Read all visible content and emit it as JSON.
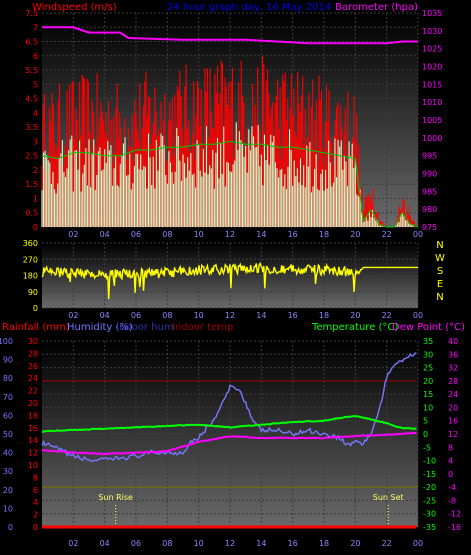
{
  "chart_data": [
    {
      "type": "area",
      "title": "24 hour graph day, 16 May 2014",
      "left_label": "Windspeed (m/s)",
      "right_label": "Barometer (hpa)",
      "left_ticks": [
        "0",
        "0.5",
        "1",
        "1.5",
        "2",
        "2.5",
        "3",
        "3.5",
        "4",
        "4.5",
        "5",
        "5.5",
        "6",
        "6.5",
        "7",
        "7.5"
      ],
      "left_range": [
        0,
        7.5
      ],
      "right_ticks": [
        "975",
        "980",
        "985",
        "990",
        "995",
        "1000",
        "1005",
        "1010",
        "1015",
        "1020",
        "1025",
        "1030",
        "1035"
      ],
      "right_range": [
        975,
        1035
      ],
      "x_ticks": [
        "02",
        "04",
        "06",
        "08",
        "10",
        "12",
        "14",
        "16",
        "18",
        "20",
        "22",
        "00"
      ],
      "x_range": [
        0,
        24
      ],
      "series": [
        {
          "name": "Barometer",
          "color": "#ff00ff",
          "x": [
            0,
            2,
            3,
            5,
            5.5,
            9,
            13,
            15,
            17,
            20,
            21,
            22,
            23,
            24
          ],
          "values": [
            1031,
            1031,
            1029.5,
            1029.5,
            1028,
            1027.5,
            1027.5,
            1027,
            1026.5,
            1026.5,
            1026.5,
            1026.5,
            1027,
            1027
          ]
        }
      ],
      "wind_gust_hourly": {
        "color": "#ff0000",
        "x": [
          0,
          1,
          2,
          3,
          4,
          5,
          6,
          7,
          8,
          9,
          10,
          11,
          12,
          13,
          14,
          15,
          16,
          17,
          18,
          19,
          20,
          20.5,
          21,
          21.5,
          22,
          22.5,
          23,
          23.5,
          24
        ],
        "values": [
          3.4,
          3.6,
          3.8,
          3.9,
          3.8,
          3.7,
          3.8,
          4.0,
          4.0,
          4.1,
          4.2,
          4.3,
          4.4,
          4.3,
          4.3,
          4.2,
          4.1,
          4.0,
          3.8,
          3.7,
          3.6,
          0.5,
          1.5,
          0.3,
          0,
          0,
          1.0,
          0.4,
          0
        ]
      },
      "wind_avg_hourly": {
        "color": "#ccffcc",
        "x": [
          0,
          1,
          2,
          3,
          4,
          5,
          6,
          7,
          8,
          9,
          10,
          11,
          12,
          13,
          14,
          15,
          16,
          17,
          18,
          19,
          20,
          20.5,
          21,
          21.5,
          22,
          22.5,
          23,
          23.5,
          24
        ],
        "values": [
          2.5,
          2.4,
          2.6,
          2.6,
          2.5,
          2.5,
          2.7,
          2.7,
          2.8,
          2.8,
          2.9,
          2.9,
          3.0,
          2.9,
          2.9,
          2.8,
          2.8,
          2.7,
          2.6,
          2.5,
          2.4,
          0.2,
          0.6,
          0.1,
          0,
          0,
          0.5,
          0.1,
          0
        ]
      }
    },
    {
      "type": "scatter",
      "right_labels": [
        "N",
        "W",
        "S",
        "E",
        "N"
      ],
      "ticks": [
        "0",
        "90",
        "180",
        "270",
        "360"
      ],
      "range": [
        0,
        360
      ],
      "x_ticks": [
        "02",
        "04",
        "06",
        "08",
        "10",
        "12",
        "14",
        "16",
        "18",
        "20",
        "22",
        "00"
      ],
      "series": [
        {
          "name": "Wind direction",
          "color": "#ffff00",
          "x": [
            0,
            2,
            4,
            6,
            8,
            10,
            12,
            14,
            16,
            18,
            20,
            20.5,
            22,
            24
          ],
          "values": [
            200,
            195,
            185,
            190,
            195,
            210,
            215,
            220,
            215,
            210,
            200,
            225,
            225,
            225
          ]
        }
      ]
    },
    {
      "type": "line",
      "labels": {
        "rainfall": "Rainfall (mm)",
        "humidity": "Humidity (%)",
        "indoor_hum": "Indoor hum",
        "indoor_temp": "Indoor temp",
        "temperature": "Temperature (°C)",
        "dew_point": "Dew Point (°C)"
      },
      "rain_ticks": [
        "0",
        "2",
        "4",
        "6",
        "8",
        "10",
        "12",
        "14",
        "16",
        "18",
        "20",
        "22",
        "24",
        "26",
        "28",
        "30"
      ],
      "hum_ticks": [
        "0",
        "10",
        "20",
        "30",
        "40",
        "50",
        "60",
        "70",
        "80",
        "90",
        "100"
      ],
      "temp_ticks": [
        "-35",
        "-30",
        "-25",
        "-20",
        "-15",
        "-10",
        "-5",
        "0",
        "5",
        "10",
        "15",
        "20",
        "25",
        "30",
        "35"
      ],
      "dew_ticks": [
        "-16",
        "-12",
        "-8",
        "-4",
        "0",
        "4",
        "8",
        "12",
        "16",
        "20",
        "24",
        "28",
        "32",
        "36",
        "40"
      ],
      "x_ticks": [
        "02",
        "04",
        "06",
        "08",
        "10",
        "12",
        "14",
        "16",
        "18",
        "20",
        "22",
        "00"
      ],
      "annotations": [
        {
          "label": "Sun Rise",
          "x": 4.7
        },
        {
          "label": "Sun Set",
          "x": 22.1
        }
      ],
      "series": [
        {
          "name": "Humidity",
          "color": "#7777ff",
          "x": [
            0,
            1,
            2,
            3,
            4,
            5,
            6,
            7,
            8,
            9,
            9.5,
            10,
            11,
            11.5,
            12,
            12.5,
            13,
            13.5,
            14,
            15,
            16,
            17,
            18,
            19,
            19.5,
            20,
            20.5,
            21,
            21.5,
            22,
            22.5,
            23,
            23.5,
            24
          ],
          "values": [
            45,
            42,
            38,
            36,
            36,
            37,
            38,
            40,
            40,
            40,
            46,
            48,
            58,
            66,
            75,
            75,
            67,
            56,
            52,
            52,
            50,
            52,
            50,
            48,
            44,
            46,
            45,
            50,
            62,
            80,
            88,
            90,
            92,
            95
          ]
        },
        {
          "name": "Temperature",
          "color": "#00ff00",
          "x": [
            0,
            2,
            4,
            6,
            8,
            10,
            12,
            14,
            16,
            18,
            19,
            20,
            21,
            22,
            22.5,
            23,
            24
          ],
          "values": [
            1,
            1.5,
            2,
            2.5,
            3,
            3.5,
            2.5,
            3.5,
            4.5,
            5,
            6,
            6.8,
            5.5,
            4,
            3,
            2.2,
            2
          ]
        },
        {
          "name": "Dew Point",
          "color": "#ff00ff",
          "x": [
            0,
            2,
            4,
            6,
            8,
            10,
            12,
            14,
            16,
            18,
            20,
            21,
            22,
            23,
            24
          ],
          "values": [
            -6,
            -7,
            -7.5,
            -7,
            -6.5,
            -3,
            -0.8,
            -1.5,
            -1.5,
            -1.5,
            -0.8,
            -0.5,
            -0.3,
            0,
            0.5
          ]
        },
        {
          "name": "Indoor temp",
          "color": "#990000",
          "x": [
            0,
            24
          ],
          "values": [
            20,
            20
          ]
        },
        {
          "name": "Rainfall",
          "color": "#ff0000",
          "x": [
            0,
            24
          ],
          "values": [
            0,
            0
          ]
        }
      ]
    }
  ]
}
